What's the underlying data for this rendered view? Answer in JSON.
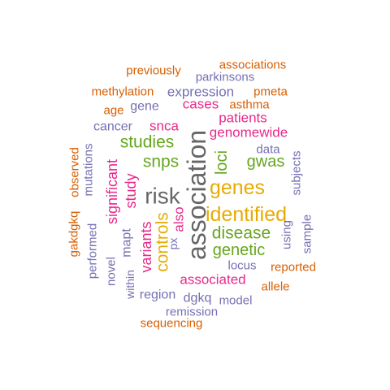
{
  "palette": {
    "orange": "#d95f02",
    "purple": "#7570b3",
    "magenta": "#e7298a",
    "green": "#66a61e",
    "gold": "#e6ab02",
    "gray": "#666666"
  },
  "words": [
    {
      "text": "association",
      "color": "gray"
    },
    {
      "text": "risk",
      "color": "gray"
    },
    {
      "text": "genes",
      "color": "gold"
    },
    {
      "text": "identified",
      "color": "gold"
    },
    {
      "text": "controls",
      "color": "gold"
    },
    {
      "text": "studies",
      "color": "green"
    },
    {
      "text": "snps",
      "color": "green"
    },
    {
      "text": "disease",
      "color": "green"
    },
    {
      "text": "genetic",
      "color": "green"
    },
    {
      "text": "gwas",
      "color": "green"
    },
    {
      "text": "loci",
      "color": "green"
    },
    {
      "text": "study",
      "color": "magenta"
    },
    {
      "text": "significant",
      "color": "magenta"
    },
    {
      "text": "variants",
      "color": "magenta"
    },
    {
      "text": "also",
      "color": "magenta"
    },
    {
      "text": "associated",
      "color": "magenta"
    },
    {
      "text": "genomewide",
      "color": "magenta"
    },
    {
      "text": "patients",
      "color": "magenta"
    },
    {
      "text": "snca",
      "color": "magenta"
    },
    {
      "text": "cases",
      "color": "magenta"
    },
    {
      "text": "expression",
      "color": "purple"
    },
    {
      "text": "gene",
      "color": "purple"
    },
    {
      "text": "cancer",
      "color": "purple"
    },
    {
      "text": "data",
      "color": "purple"
    },
    {
      "text": "subjects",
      "color": "purple"
    },
    {
      "text": "sample",
      "color": "purple"
    },
    {
      "text": "using",
      "color": "purple"
    },
    {
      "text": "locus",
      "color": "purple"
    },
    {
      "text": "region",
      "color": "purple"
    },
    {
      "text": "dgkq",
      "color": "purple"
    },
    {
      "text": "model",
      "color": "purple"
    },
    {
      "text": "remission",
      "color": "purple"
    },
    {
      "text": "parkinsons",
      "color": "purple"
    },
    {
      "text": "mapt",
      "color": "purple"
    },
    {
      "text": "px",
      "color": "purple"
    },
    {
      "text": "within",
      "color": "purple"
    },
    {
      "text": "novel",
      "color": "purple"
    },
    {
      "text": "performed",
      "color": "purple"
    },
    {
      "text": "mutations",
      "color": "purple"
    },
    {
      "text": "previously",
      "color": "orange"
    },
    {
      "text": "associations",
      "color": "orange"
    },
    {
      "text": "methylation",
      "color": "orange"
    },
    {
      "text": "pmeta",
      "color": "orange"
    },
    {
      "text": "age",
      "color": "orange"
    },
    {
      "text": "asthma",
      "color": "orange"
    },
    {
      "text": "reported",
      "color": "orange"
    },
    {
      "text": "allele",
      "color": "orange"
    },
    {
      "text": "sequencing",
      "color": "orange"
    },
    {
      "text": "observed",
      "color": "orange"
    },
    {
      "text": "gakdgkq",
      "color": "orange"
    }
  ]
}
